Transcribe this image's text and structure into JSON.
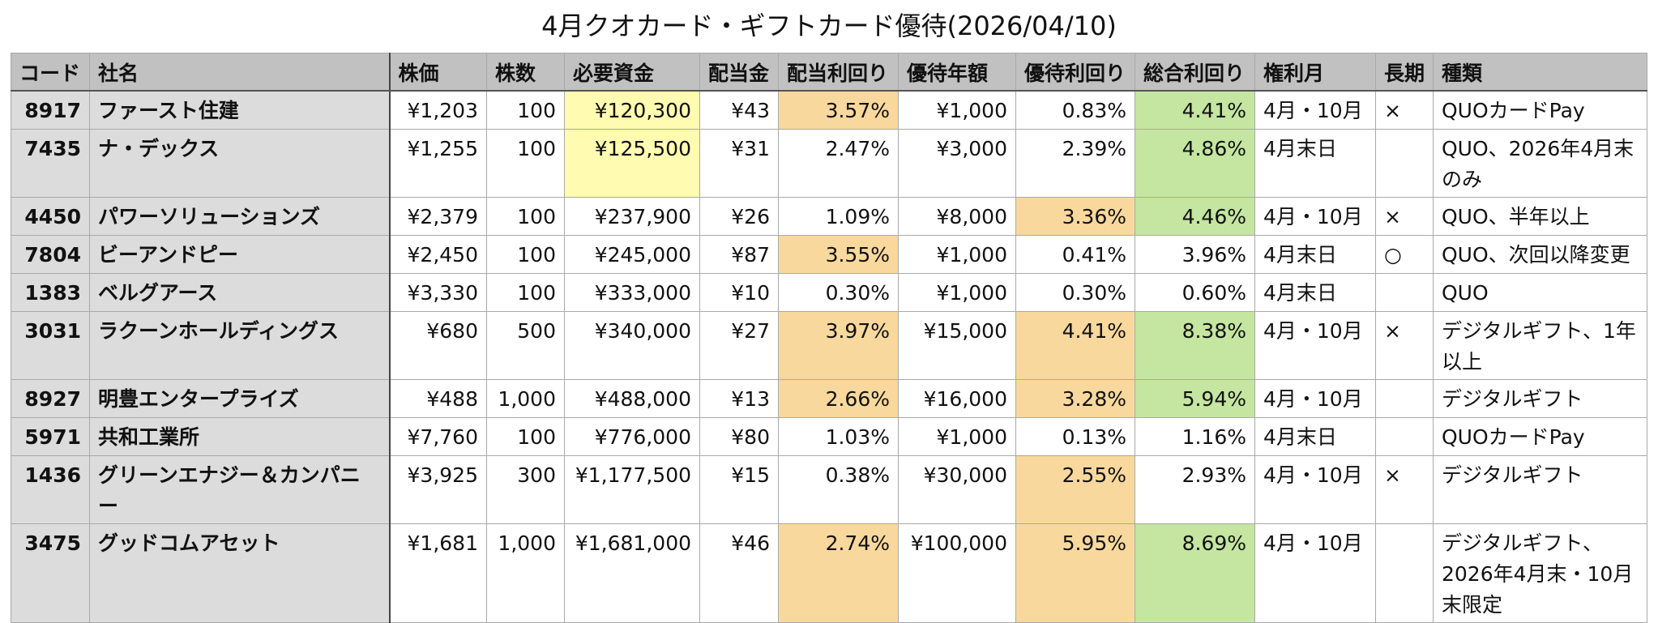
{
  "title": "4月クオカード・ギフトカード優待(2026/04/10)",
  "columns": [
    "コード",
    "社名",
    "株価",
    "株数",
    "必要資金",
    "配当金",
    "配当利回り",
    "優待年額",
    "優待利回り",
    "総合利回り",
    "権利月",
    "長期",
    "種類"
  ],
  "colors": {
    "header_bg": "#c0c1c0",
    "key_col_bg": "#dcdcdc",
    "highlight_yellow": "#fffbb0",
    "highlight_orange": "#f8d89c",
    "highlight_green": "#c4e6a0"
  },
  "rows": [
    {
      "code": "8917",
      "name": "ファースト住建",
      "price": "¥1,203",
      "shares": "100",
      "capital": "¥120,300",
      "dividend": "¥43",
      "div_yield": "3.57%",
      "benefit_amount": "¥1,000",
      "benefit_yield": "0.83%",
      "total_yield": "4.41%",
      "record_month": "4月・10月",
      "long_term": "×",
      "kind": "QUOカードPay",
      "hl": {
        "capital": "yellow",
        "div_yield": "orange",
        "benefit_yield": "",
        "total_yield": "green"
      },
      "lines": 1
    },
    {
      "code": "7435",
      "name": "ナ・デックス",
      "price": "¥1,255",
      "shares": "100",
      "capital": "¥125,500",
      "dividend": "¥31",
      "div_yield": "2.47%",
      "benefit_amount": "¥3,000",
      "benefit_yield": "2.39%",
      "total_yield": "4.86%",
      "record_month": "4月末日",
      "long_term": "",
      "kind": "QUO、2026年4月末のみ",
      "hl": {
        "capital": "yellow",
        "div_yield": "",
        "benefit_yield": "",
        "total_yield": "green"
      },
      "lines": 2
    },
    {
      "code": "4450",
      "name": "パワーソリューションズ",
      "price": "¥2,379",
      "shares": "100",
      "capital": "¥237,900",
      "dividend": "¥26",
      "div_yield": "1.09%",
      "benefit_amount": "¥8,000",
      "benefit_yield": "3.36%",
      "total_yield": "4.46%",
      "record_month": "4月・10月",
      "long_term": "×",
      "kind": "QUO、半年以上",
      "hl": {
        "capital": "",
        "div_yield": "",
        "benefit_yield": "orange",
        "total_yield": "green"
      },
      "lines": 1
    },
    {
      "code": "7804",
      "name": "ビーアンドピー",
      "price": "¥2,450",
      "shares": "100",
      "capital": "¥245,000",
      "dividend": "¥87",
      "div_yield": "3.55%",
      "benefit_amount": "¥1,000",
      "benefit_yield": "0.41%",
      "total_yield": "3.96%",
      "record_month": "4月末日",
      "long_term": "○",
      "kind": "QUO、次回以降変更",
      "hl": {
        "capital": "",
        "div_yield": "orange",
        "benefit_yield": "",
        "total_yield": ""
      },
      "lines": 1
    },
    {
      "code": "1383",
      "name": "ベルグアース",
      "price": "¥3,330",
      "shares": "100",
      "capital": "¥333,000",
      "dividend": "¥10",
      "div_yield": "0.30%",
      "benefit_amount": "¥1,000",
      "benefit_yield": "0.30%",
      "total_yield": "0.60%",
      "record_month": "4月末日",
      "long_term": "",
      "kind": "QUO",
      "hl": {
        "capital": "",
        "div_yield": "",
        "benefit_yield": "",
        "total_yield": ""
      },
      "lines": 1
    },
    {
      "code": "3031",
      "name": "ラクーンホールディングス",
      "price": "¥680",
      "shares": "500",
      "capital": "¥340,000",
      "dividend": "¥27",
      "div_yield": "3.97%",
      "benefit_amount": "¥15,000",
      "benefit_yield": "4.41%",
      "total_yield": "8.38%",
      "record_month": "4月・10月",
      "long_term": "×",
      "kind": "デジタルギフト、1年以上",
      "hl": {
        "capital": "",
        "div_yield": "orange",
        "benefit_yield": "orange",
        "total_yield": "green"
      },
      "lines": 2
    },
    {
      "code": "8927",
      "name": "明豊エンタープライズ",
      "price": "¥488",
      "shares": "1,000",
      "capital": "¥488,000",
      "dividend": "¥13",
      "div_yield": "2.66%",
      "benefit_amount": "¥16,000",
      "benefit_yield": "3.28%",
      "total_yield": "5.94%",
      "record_month": "4月・10月",
      "long_term": "",
      "kind": "デジタルギフト",
      "hl": {
        "capital": "",
        "div_yield": "orange",
        "benefit_yield": "orange",
        "total_yield": "green"
      },
      "lines": 1
    },
    {
      "code": "5971",
      "name": "共和工業所",
      "price": "¥7,760",
      "shares": "100",
      "capital": "¥776,000",
      "dividend": "¥80",
      "div_yield": "1.03%",
      "benefit_amount": "¥1,000",
      "benefit_yield": "0.13%",
      "total_yield": "1.16%",
      "record_month": "4月末日",
      "long_term": "",
      "kind": "QUOカードPay",
      "hl": {
        "capital": "",
        "div_yield": "",
        "benefit_yield": "",
        "total_yield": ""
      },
      "lines": 1
    },
    {
      "code": "1436",
      "name": "グリーンエナジー＆カンパニー",
      "price": "¥3,925",
      "shares": "300",
      "capital": "¥1,177,500",
      "dividend": "¥15",
      "div_yield": "0.38%",
      "benefit_amount": "¥30,000",
      "benefit_yield": "2.55%",
      "total_yield": "2.93%",
      "record_month": "4月・10月",
      "long_term": "×",
      "kind": "デジタルギフト",
      "hl": {
        "capital": "",
        "div_yield": "",
        "benefit_yield": "orange",
        "total_yield": ""
      },
      "lines": 1
    },
    {
      "code": "3475",
      "name": "グッドコムアセット",
      "price": "¥1,681",
      "shares": "1,000",
      "capital": "¥1,681,000",
      "dividend": "¥46",
      "div_yield": "2.74%",
      "benefit_amount": "¥100,000",
      "benefit_yield": "5.95%",
      "total_yield": "8.69%",
      "record_month": "4月・10月",
      "long_term": "",
      "kind": "デジタルギフト、2026年4月末・10月末限定",
      "hl": {
        "capital": "",
        "div_yield": "orange",
        "benefit_yield": "orange",
        "total_yield": "green"
      },
      "lines": 3
    }
  ]
}
